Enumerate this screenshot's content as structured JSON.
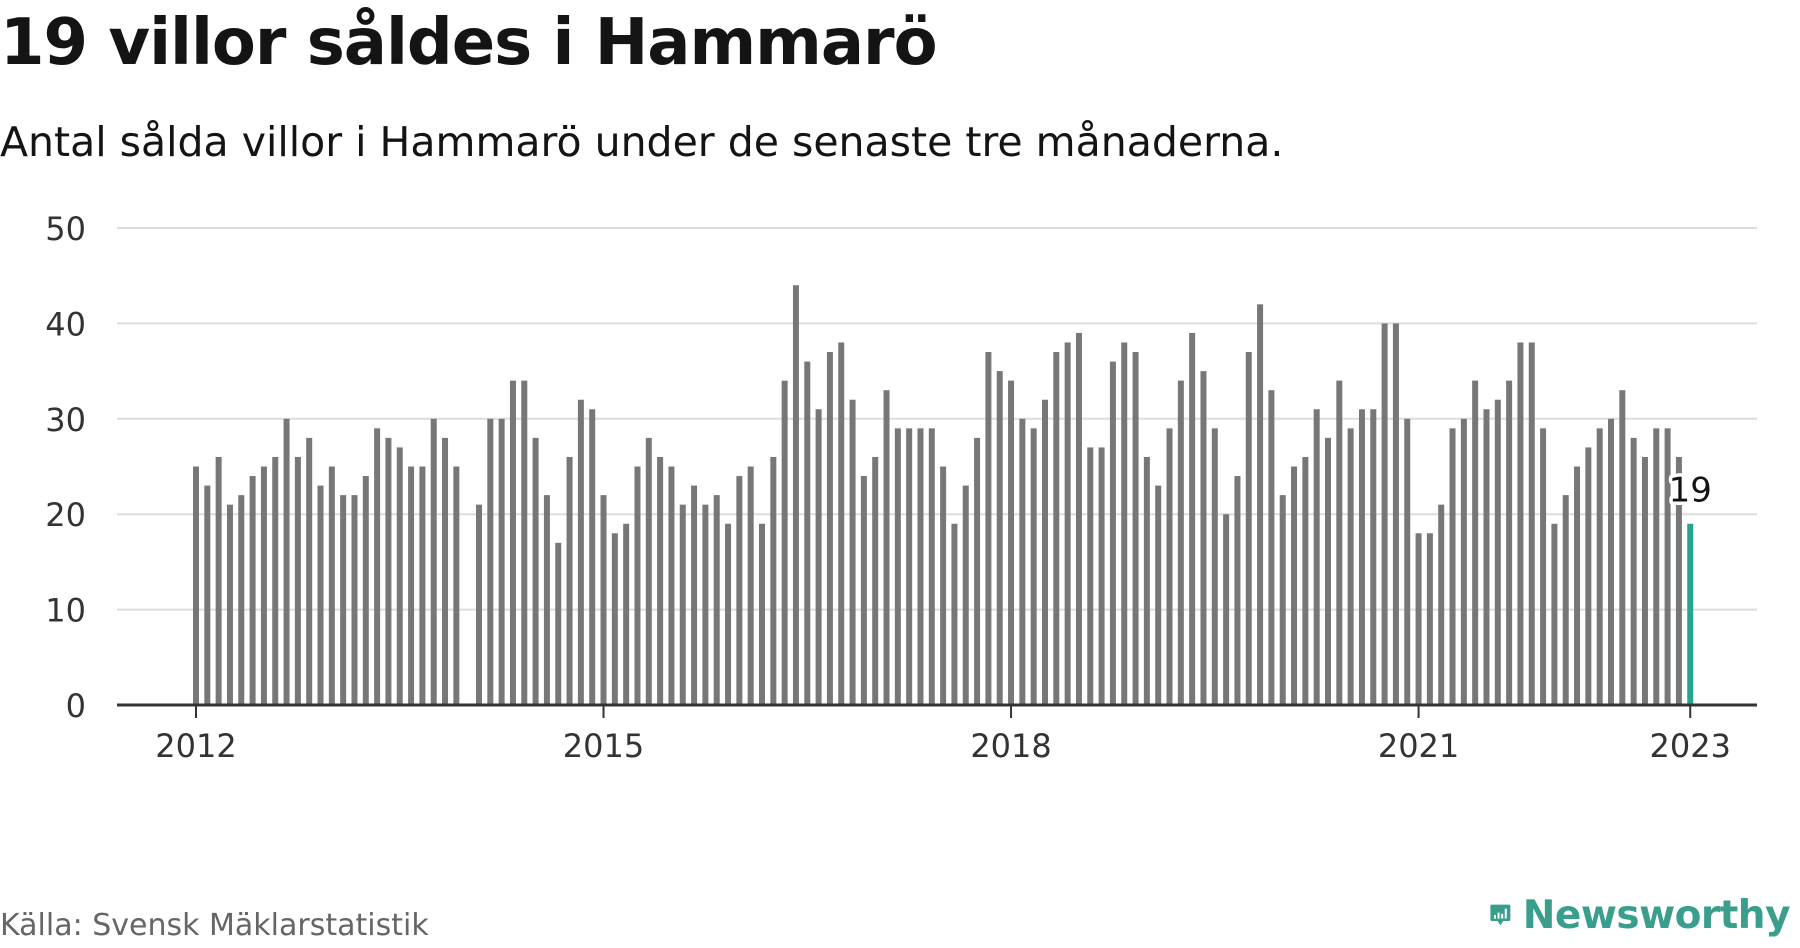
{
  "header": {
    "title": "19 villor såldes i Hammarö",
    "subtitle": "Antal sålda villor i Hammarö under de senaste tre månaderna."
  },
  "footer": {
    "source": "Källa: Svensk Mäklarstatistik",
    "brand": "Newsworthy"
  },
  "colors": {
    "bar": "#777777",
    "highlight": "#2aa38d",
    "grid": "#dddddd",
    "axis": "#333333",
    "brand": "#3a9e8c"
  },
  "icons": {
    "brand_logo": "newsworthy-logo-icon"
  },
  "chart_data": {
    "type": "bar",
    "title": "19 villor såldes i Hammarö",
    "subtitle": "Antal sålda villor i Hammarö under de senaste tre månaderna.",
    "xlabel": "",
    "ylabel": "",
    "ylim": [
      0,
      50
    ],
    "yticks": [
      0,
      10,
      20,
      30,
      40,
      50
    ],
    "xticks": [
      "2012",
      "2015",
      "2018",
      "2021",
      "2023"
    ],
    "grid": true,
    "legend": "none",
    "frequency": "monthly",
    "start": "2012-01",
    "values": [
      25,
      23,
      26,
      21,
      22,
      24,
      25,
      26,
      30,
      26,
      28,
      23,
      25,
      22,
      22,
      24,
      29,
      28,
      27,
      25,
      25,
      30,
      28,
      25,
      null,
      21,
      30,
      30,
      34,
      34,
      28,
      22,
      17,
      26,
      32,
      31,
      22,
      18,
      19,
      25,
      28,
      26,
      25,
      21,
      23,
      21,
      22,
      19,
      24,
      25,
      19,
      26,
      34,
      44,
      36,
      31,
      37,
      38,
      32,
      24,
      26,
      33,
      29,
      29,
      29,
      29,
      25,
      19,
      23,
      28,
      37,
      35,
      34,
      30,
      29,
      32,
      37,
      38,
      39,
      27,
      27,
      36,
      38,
      37,
      26,
      23,
      29,
      34,
      39,
      35,
      29,
      20,
      24,
      37,
      42,
      33,
      22,
      25,
      26,
      31,
      28,
      34,
      29,
      31,
      31,
      40,
      40,
      30,
      18,
      18,
      21,
      29,
      30,
      34,
      31,
      32,
      34,
      38,
      38,
      29,
      19,
      22,
      25,
      27,
      29,
      30,
      33,
      28,
      26,
      29,
      29,
      26,
      19
    ],
    "highlight": {
      "x": "2023-01",
      "value": 19,
      "label": "19"
    }
  }
}
